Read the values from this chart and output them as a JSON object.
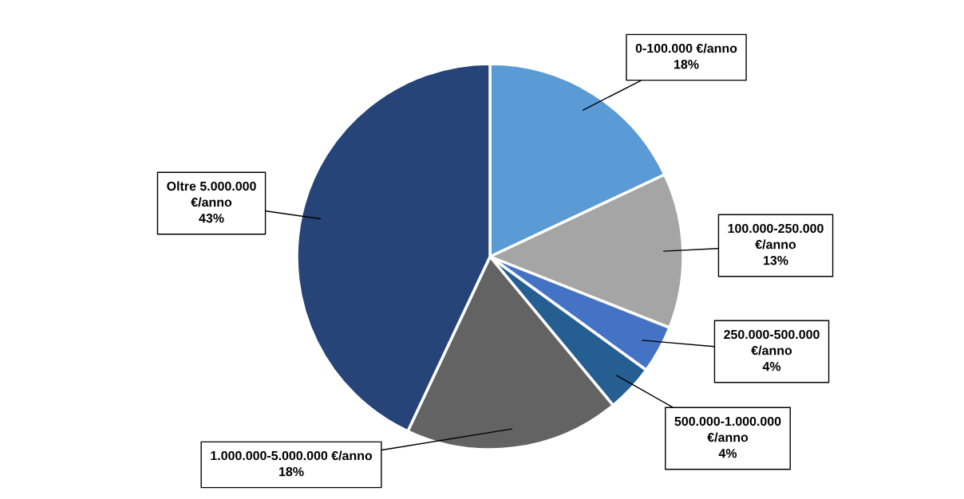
{
  "chart_data": {
    "type": "pie",
    "categories": [
      "0-100.000 €/anno",
      "100.000-250.000 €/anno",
      "250.000-500.000 €/anno",
      "500.000-1.000.000 €/anno",
      "1.000.000-5.000.000 €/anno",
      "Oltre 5.000.000 €/anno"
    ],
    "values": [
      18,
      13,
      4,
      4,
      18,
      43
    ],
    "colors": [
      "#5b9bd5",
      "#a5a5a5",
      "#4472c4",
      "#255e91",
      "#636363",
      "#264478"
    ],
    "value_labels": [
      "18%",
      "13%",
      "4%",
      "4%",
      "18%",
      "43%"
    ]
  }
}
